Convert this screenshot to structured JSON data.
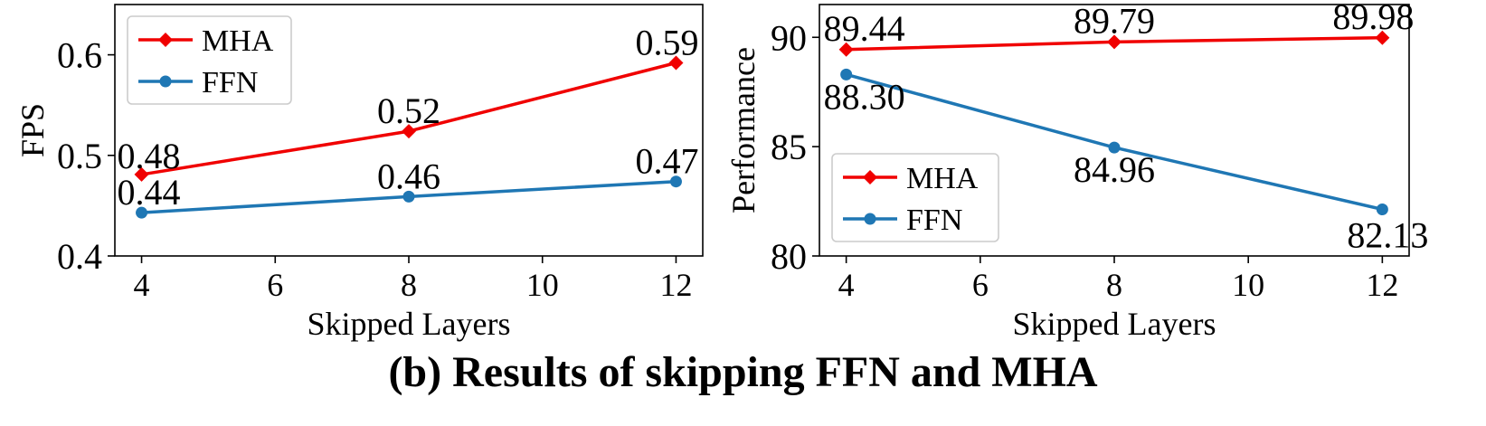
{
  "caption": "(b) Results of skipping FFN and MHA",
  "colors": {
    "MHA": "#f00000",
    "FFN": "#1f77b4"
  },
  "chart_data": [
    {
      "type": "line",
      "xlabel": "Skipped Layers",
      "ylabel": "FPS",
      "xlim": [
        3.6,
        12.4
      ],
      "ylim": [
        0.4,
        0.65
      ],
      "xticks": [
        4,
        6,
        8,
        10,
        12
      ],
      "yticks": [
        0.4,
        0.5,
        0.6
      ],
      "ytick_labels": [
        "0.4",
        "0.5",
        "0.6"
      ],
      "legend": "top-left",
      "grid": false,
      "series": [
        {
          "name": "MHA",
          "marker": "diamond",
          "x": [
            4,
            8,
            12
          ],
          "values": [
            0.481,
            0.524,
            0.592
          ],
          "labels": [
            "0.48",
            "0.52",
            "0.59"
          ]
        },
        {
          "name": "FFN",
          "marker": "circle",
          "x": [
            4,
            8,
            12
          ],
          "values": [
            0.443,
            0.459,
            0.474
          ],
          "labels": [
            "0.44",
            "0.46",
            "0.47"
          ]
        }
      ]
    },
    {
      "type": "line",
      "xlabel": "Skipped Layers",
      "ylabel": "Performance",
      "xlim": [
        3.6,
        12.4
      ],
      "ylim": [
        80,
        91.5
      ],
      "xticks": [
        4,
        6,
        8,
        10,
        12
      ],
      "yticks": [
        80,
        85,
        90
      ],
      "ytick_labels": [
        "80",
        "85",
        "90"
      ],
      "legend": "lower-left",
      "grid": false,
      "series": [
        {
          "name": "MHA",
          "marker": "diamond",
          "x": [
            4,
            8,
            12
          ],
          "values": [
            89.44,
            89.79,
            89.98
          ],
          "labels": [
            "89.44",
            "89.79",
            "89.98"
          ]
        },
        {
          "name": "FFN",
          "marker": "circle",
          "x": [
            4,
            8,
            12
          ],
          "values": [
            88.3,
            84.96,
            82.13
          ],
          "labels": [
            "88.30",
            "84.96",
            "82.13"
          ]
        }
      ]
    }
  ]
}
